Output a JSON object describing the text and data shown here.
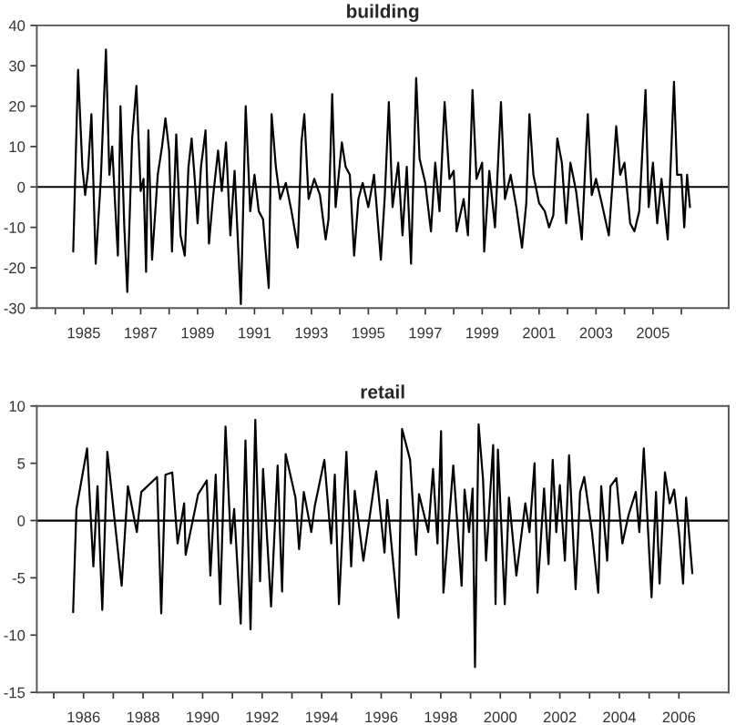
{
  "chart_data": [
    {
      "type": "line",
      "title": "building",
      "x": [
        1984.63,
        1984.8,
        1984.95,
        1985.05,
        1985.15,
        1985.27,
        1985.42,
        1985.6,
        1985.78,
        1985.9,
        1986.0,
        1986.1,
        1986.2,
        1986.29,
        1986.42,
        1986.53,
        1986.7,
        1986.85,
        1987.0,
        1987.1,
        1987.19,
        1987.27,
        1987.4,
        1987.6,
        1987.75,
        1987.87,
        1988.0,
        1988.1,
        1988.25,
        1988.4,
        1988.55,
        1988.68,
        1988.79,
        1988.9,
        1989.0,
        1989.12,
        1989.28,
        1989.4,
        1989.55,
        1989.72,
        1989.85,
        1990.0,
        1990.15,
        1990.3,
        1990.52,
        1990.69,
        1990.85,
        1991.0,
        1991.15,
        1991.3,
        1991.5,
        1991.6,
        1991.75,
        1991.9,
        1992.1,
        1992.3,
        1992.52,
        1992.65,
        1992.75,
        1992.9,
        1993.1,
        1993.3,
        1993.5,
        1993.6,
        1993.73,
        1993.85,
        1994.07,
        1994.2,
        1994.35,
        1994.5,
        1994.65,
        1994.8,
        1995.0,
        1995.2,
        1995.44,
        1995.58,
        1995.72,
        1995.85,
        1996.05,
        1996.2,
        1996.35,
        1996.5,
        1996.68,
        1996.8,
        1997.0,
        1997.2,
        1997.35,
        1997.5,
        1997.68,
        1997.85,
        1998.0,
        1998.1,
        1998.35,
        1998.5,
        1998.66,
        1998.8,
        1999.0,
        1999.07,
        1999.25,
        1999.45,
        1999.66,
        1999.8,
        2000.0,
        2000.2,
        2000.4,
        2000.55,
        2000.66,
        2000.8,
        2001.0,
        2001.2,
        2001.35,
        2001.5,
        2001.64,
        2001.8,
        2001.95,
        2002.1,
        2002.3,
        2002.5,
        2002.71,
        2002.85,
        2003.0,
        2003.2,
        2003.45,
        2003.6,
        2003.71,
        2003.85,
        2004.0,
        2004.2,
        2004.35,
        2004.52,
        2004.74,
        2004.85,
        2005.0,
        2005.15,
        2005.3,
        2005.52,
        2005.74,
        2005.85,
        2006.0,
        2006.1,
        2006.2,
        2006.3
      ],
      "series": [
        {
          "color": "#000000",
          "values": [
            -16,
            29,
            5,
            -2,
            4,
            18,
            -19,
            2,
            34,
            3,
            10,
            -4,
            -17,
            20,
            -9,
            -26,
            12,
            25,
            -1,
            2,
            -21,
            14,
            -18,
            3,
            10,
            17,
            9,
            -16,
            13,
            -12,
            -17,
            5,
            12,
            2,
            -9,
            5,
            14,
            -14,
            -2,
            9,
            -1,
            11,
            -12,
            4,
            -29,
            20,
            -6,
            3,
            -6,
            -8,
            -25,
            18,
            5,
            -3,
            1,
            -6,
            -15,
            11,
            18,
            -3,
            2,
            -2,
            -13,
            -8,
            23,
            -5,
            11,
            5,
            3,
            -17,
            -3,
            1,
            -5,
            3,
            -18,
            -2,
            21,
            -5,
            6,
            -12,
            5,
            -19,
            27,
            7,
            1,
            -11,
            6,
            -6,
            21,
            2,
            4,
            -11,
            -3,
            -12,
            24,
            2,
            6,
            -16,
            4,
            -10,
            21,
            -3,
            3,
            -5,
            -15,
            -4,
            18,
            3,
            -4,
            -6,
            -10,
            -7,
            12,
            6,
            -9,
            6,
            -1,
            -13,
            18,
            -2,
            2,
            -4,
            -12,
            3,
            15,
            3,
            6,
            -9,
            -11,
            -6,
            24,
            -5,
            6,
            -9,
            2,
            -13,
            26,
            3,
            3,
            -10,
            3,
            -5
          ]
        }
      ],
      "xlim": [
        1983.35,
        2007.66
      ],
      "ylim": [
        -30,
        40
      ],
      "xticks": [
        {
          "value": 1984,
          "label": null
        },
        1985,
        {
          "value": 1986,
          "label": null
        },
        1987,
        {
          "value": 1988,
          "label": null
        },
        1989,
        {
          "value": 1990,
          "label": null
        },
        1991,
        {
          "value": 1992,
          "label": null
        },
        1993,
        {
          "value": 1994,
          "label": null
        },
        1995,
        {
          "value": 1996,
          "label": null
        },
        1997,
        {
          "value": 1998,
          "label": null
        },
        1999,
        {
          "value": 2000,
          "label": null
        },
        2001,
        {
          "value": 2002,
          "label": null
        },
        2003,
        {
          "value": 2004,
          "label": null
        },
        2005,
        {
          "value": 2006,
          "label": null
        }
      ],
      "yticks": [
        -30,
        -20,
        -10,
        0,
        10,
        20,
        30,
        40
      ],
      "ref_lines": [
        {
          "axis": "y",
          "value": 0,
          "color": "#000000"
        }
      ],
      "grid": false,
      "marker": "none",
      "line_style": "solid"
    },
    {
      "type": "line",
      "title": "retail",
      "x": [
        1985.65,
        1985.76,
        1986.12,
        1986.33,
        1986.47,
        1986.63,
        1986.8,
        1987.28,
        1987.49,
        1987.79,
        1987.94,
        1988.47,
        1988.61,
        1988.75,
        1988.98,
        1989.16,
        1989.38,
        1989.43,
        1989.85,
        1990.14,
        1990.26,
        1990.44,
        1990.59,
        1990.77,
        1990.95,
        1991.06,
        1991.28,
        1991.44,
        1991.61,
        1991.77,
        1991.93,
        1992.03,
        1992.3,
        1992.52,
        1992.67,
        1992.79,
        1993.12,
        1993.24,
        1993.4,
        1993.65,
        1993.77,
        1994.09,
        1994.32,
        1994.44,
        1994.58,
        1994.83,
        1994.99,
        1995.11,
        1995.4,
        1995.83,
        1996.11,
        1996.2,
        1996.58,
        1996.7,
        1996.97,
        1997.17,
        1997.27,
        1997.58,
        1997.74,
        1997.89,
        1998.01,
        1998.09,
        1998.42,
        1998.7,
        1998.8,
        1998.95,
        1999.07,
        1999.15,
        1999.27,
        1999.42,
        1999.52,
        1999.76,
        1999.84,
        1999.92,
        2000.15,
        2000.29,
        2000.54,
        2000.84,
        2000.98,
        2001.15,
        2001.25,
        2001.47,
        2001.62,
        2001.76,
        2001.88,
        2002.0,
        2002.17,
        2002.31,
        2002.53,
        2002.68,
        2002.82,
        2003.08,
        2003.29,
        2003.39,
        2003.59,
        2003.7,
        2003.9,
        2004.1,
        2004.31,
        2004.55,
        2004.67,
        2004.82,
        2005.08,
        2005.23,
        2005.35,
        2005.53,
        2005.69,
        2005.84,
        2006.0,
        2006.14,
        2006.24,
        2006.45
      ],
      "series": [
        {
          "color": "#000000",
          "values": [
            -8,
            1,
            6.3,
            -4,
            3,
            -7.8,
            6,
            -5.7,
            3,
            -1,
            2.5,
            3.8,
            -8.1,
            4,
            4.2,
            -2,
            1.5,
            -3,
            2.3,
            3.5,
            -4.8,
            4,
            -7.3,
            8.2,
            -2,
            1,
            -9,
            7,
            -9.5,
            8.8,
            -5.3,
            4.5,
            -7.5,
            4.8,
            -6.2,
            5.8,
            2,
            -2.5,
            2.5,
            -1,
            1.3,
            5.3,
            -2,
            4,
            -7.3,
            6,
            -4,
            2.6,
            -3.5,
            4.3,
            -2.8,
            1.8,
            -8.5,
            8,
            5.3,
            -3,
            2.3,
            -1,
            4.5,
            -2,
            7.8,
            -6.3,
            4.8,
            -5.7,
            2.7,
            -1,
            2.8,
            -12.8,
            8.4,
            3.6,
            -3.5,
            6.6,
            -7.3,
            6.2,
            -7.3,
            2,
            -4.8,
            1.5,
            -1,
            5,
            -6.3,
            2.8,
            -3.8,
            5.3,
            -1,
            3.1,
            -3.5,
            5.7,
            -6,
            2.5,
            3.8,
            -1,
            -6.3,
            3,
            -3.5,
            3,
            3.7,
            -2,
            0.5,
            2.5,
            -1,
            6.3,
            -6.7,
            2.5,
            -5.5,
            4.2,
            1.5,
            2.7,
            -1,
            -5.5,
            2,
            -4.6
          ]
        }
      ],
      "xlim": [
        1984.43,
        2007.67
      ],
      "ylim": [
        -15,
        10
      ],
      "xticks": [
        {
          "value": 1985,
          "label": null
        },
        1986,
        {
          "value": 1987,
          "label": null
        },
        1988,
        {
          "value": 1989,
          "label": null
        },
        1990,
        {
          "value": 1991,
          "label": null
        },
        1992,
        {
          "value": 1993,
          "label": null
        },
        1994,
        {
          "value": 1995,
          "label": null
        },
        1996,
        {
          "value": 1997,
          "label": null
        },
        1998,
        {
          "value": 1999,
          "label": null
        },
        2000,
        {
          "value": 2001,
          "label": null
        },
        2002,
        {
          "value": 2003,
          "label": null
        },
        2004,
        {
          "value": 2005,
          "label": null
        },
        2006
      ],
      "yticks": [
        -15,
        -10,
        -5,
        0,
        5,
        10
      ],
      "ref_lines": [
        {
          "axis": "y",
          "value": 0,
          "color": "#000000"
        }
      ],
      "grid": false,
      "marker": "none",
      "line_style": "solid"
    }
  ]
}
